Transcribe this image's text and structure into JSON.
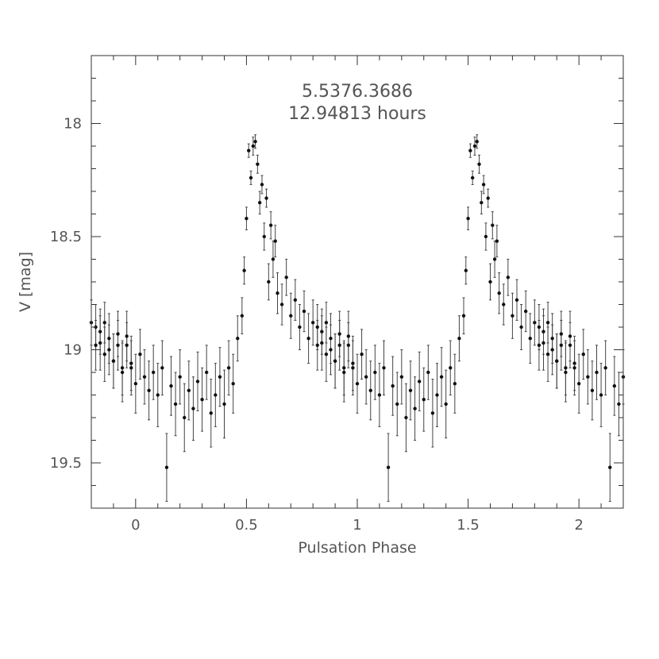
{
  "chart_data": {
    "type": "scatter",
    "title": "5.5376.3686",
    "subtitle": "12.94813 hours",
    "xlabel": "Pulsation Phase",
    "ylabel": "V [mag]",
    "xlim": [
      -0.2,
      2.2
    ],
    "ylim": [
      19.7,
      17.7
    ],
    "y_inverted": true,
    "x_ticks": [
      0,
      0.5,
      1,
      1.5,
      2
    ],
    "x_tick_labels": [
      "0",
      "0.5",
      "1",
      "1.5",
      "2"
    ],
    "y_ticks": [
      18,
      18.5,
      19,
      19.5
    ],
    "y_tick_labels": [
      "18",
      "18.5",
      "19",
      "19.5"
    ],
    "x_minor_step": 0.1,
    "y_minor_step": 0.1,
    "grid": false,
    "error_bars": true,
    "repeat_period": 1,
    "series": [
      {
        "phase_mag_err": [
          [
            -0.18,
            18.9,
            0.1
          ],
          [
            -0.16,
            18.97,
            0.12
          ],
          [
            -0.14,
            18.88,
            0.09
          ],
          [
            -0.12,
            19.0,
            0.11
          ],
          [
            -0.1,
            19.05,
            0.12
          ],
          [
            -0.08,
            18.93,
            0.1
          ],
          [
            -0.06,
            19.1,
            0.13
          ],
          [
            -0.04,
            18.98,
            0.1
          ],
          [
            -0.02,
            19.08,
            0.12
          ],
          [
            0.0,
            19.15,
            0.13
          ],
          [
            0.02,
            19.02,
            0.11
          ],
          [
            0.04,
            19.12,
            0.12
          ],
          [
            0.06,
            19.18,
            0.13
          ],
          [
            0.08,
            19.1,
            0.12
          ],
          [
            0.1,
            19.2,
            0.14
          ],
          [
            0.12,
            19.08,
            0.12
          ],
          [
            0.14,
            19.52,
            0.15
          ],
          [
            0.16,
            19.16,
            0.13
          ],
          [
            0.18,
            19.24,
            0.14
          ],
          [
            0.2,
            19.12,
            0.12
          ],
          [
            0.22,
            19.3,
            0.15
          ],
          [
            0.24,
            19.18,
            0.13
          ],
          [
            0.26,
            19.26,
            0.14
          ],
          [
            0.28,
            19.14,
            0.13
          ],
          [
            0.3,
            19.22,
            0.14
          ],
          [
            0.32,
            19.1,
            0.12
          ],
          [
            0.34,
            19.28,
            0.15
          ],
          [
            0.36,
            19.2,
            0.14
          ],
          [
            0.38,
            19.12,
            0.13
          ],
          [
            0.4,
            19.24,
            0.15
          ],
          [
            0.42,
            19.08,
            0.12
          ],
          [
            0.44,
            19.15,
            0.13
          ],
          [
            0.46,
            18.95,
            0.1
          ],
          [
            0.48,
            18.85,
            0.08
          ],
          [
            0.49,
            18.65,
            0.06
          ],
          [
            0.5,
            18.42,
            0.05
          ],
          [
            0.51,
            18.12,
            0.03
          ],
          [
            0.52,
            18.24,
            0.03
          ],
          [
            0.53,
            18.1,
            0.04
          ],
          [
            0.54,
            18.08,
            0.03
          ],
          [
            0.55,
            18.18,
            0.04
          ],
          [
            0.56,
            18.35,
            0.05
          ],
          [
            0.57,
            18.27,
            0.04
          ],
          [
            0.58,
            18.5,
            0.06
          ],
          [
            0.59,
            18.33,
            0.04
          ],
          [
            0.6,
            18.7,
            0.08
          ],
          [
            0.61,
            18.45,
            0.06
          ],
          [
            0.62,
            18.6,
            0.08
          ],
          [
            0.63,
            18.52,
            0.07
          ],
          [
            0.64,
            18.75,
            0.09
          ],
          [
            0.66,
            18.8,
            0.09
          ],
          [
            0.68,
            18.68,
            0.08
          ],
          [
            0.7,
            18.85,
            0.1
          ],
          [
            0.72,
            18.78,
            0.09
          ],
          [
            0.74,
            18.9,
            0.1
          ],
          [
            0.76,
            18.83,
            0.09
          ],
          [
            0.78,
            18.95,
            0.11
          ],
          [
            0.8,
            18.88,
            0.1
          ],
          [
            0.82,
            18.98,
            0.11
          ],
          [
            0.84,
            18.92,
            0.1
          ],
          [
            0.86,
            19.02,
            0.12
          ],
          [
            0.88,
            18.95,
            0.11
          ],
          [
            0.9,
            19.05,
            0.12
          ],
          [
            0.92,
            18.98,
            0.11
          ],
          [
            0.94,
            19.08,
            0.12
          ],
          [
            0.96,
            18.94,
            0.11
          ],
          [
            0.98,
            19.06,
            0.12
          ]
        ]
      }
    ]
  }
}
